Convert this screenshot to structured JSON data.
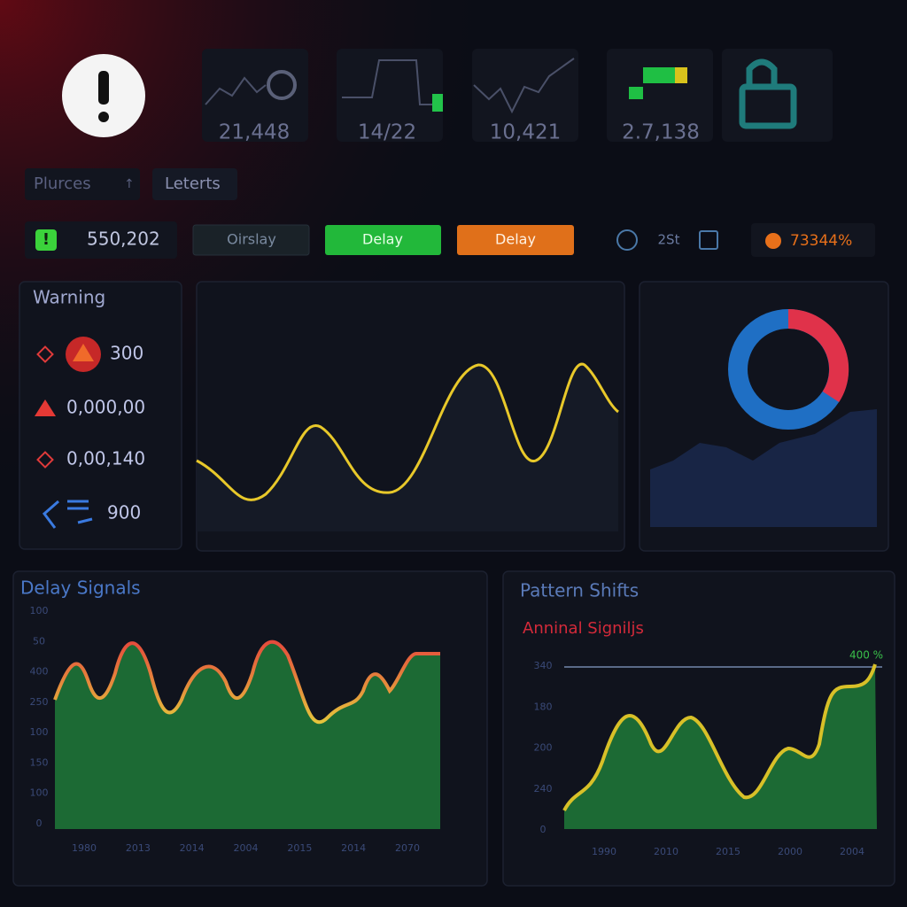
{
  "top_cards": [
    {
      "value": "21,448"
    },
    {
      "value": "14/22"
    },
    {
      "value": "10,421"
    },
    {
      "value": "2.7,138"
    }
  ],
  "tabs": [
    "Plurces",
    "↑",
    "Leterts"
  ],
  "toolbar": {
    "counter": "550,202",
    "buttons": [
      "Oirslay",
      "Delay",
      "Delay"
    ],
    "time": "2St",
    "percent": "73344%"
  },
  "warning_panel": {
    "title": "Warning",
    "items": [
      "300",
      "0,000,00",
      "0,00,140",
      "900"
    ]
  },
  "delay_signals": {
    "title": "Delay Signals",
    "y_labels": [
      "100",
      "50",
      "400",
      "250",
      "100",
      "150",
      "100",
      "0"
    ],
    "x_labels": [
      "1980",
      "2013",
      "2014",
      "2004",
      "2015",
      "2014",
      "2070"
    ]
  },
  "pattern_shifts": {
    "title": "Pattern Shifts",
    "subtitle": "Anninal Signiljs",
    "annotation": "400 %",
    "y_labels": [
      "340",
      "180",
      "200",
      "240",
      "0"
    ],
    "x_labels": [
      "1990",
      "2010",
      "2015",
      "2000",
      "2004"
    ]
  }
}
